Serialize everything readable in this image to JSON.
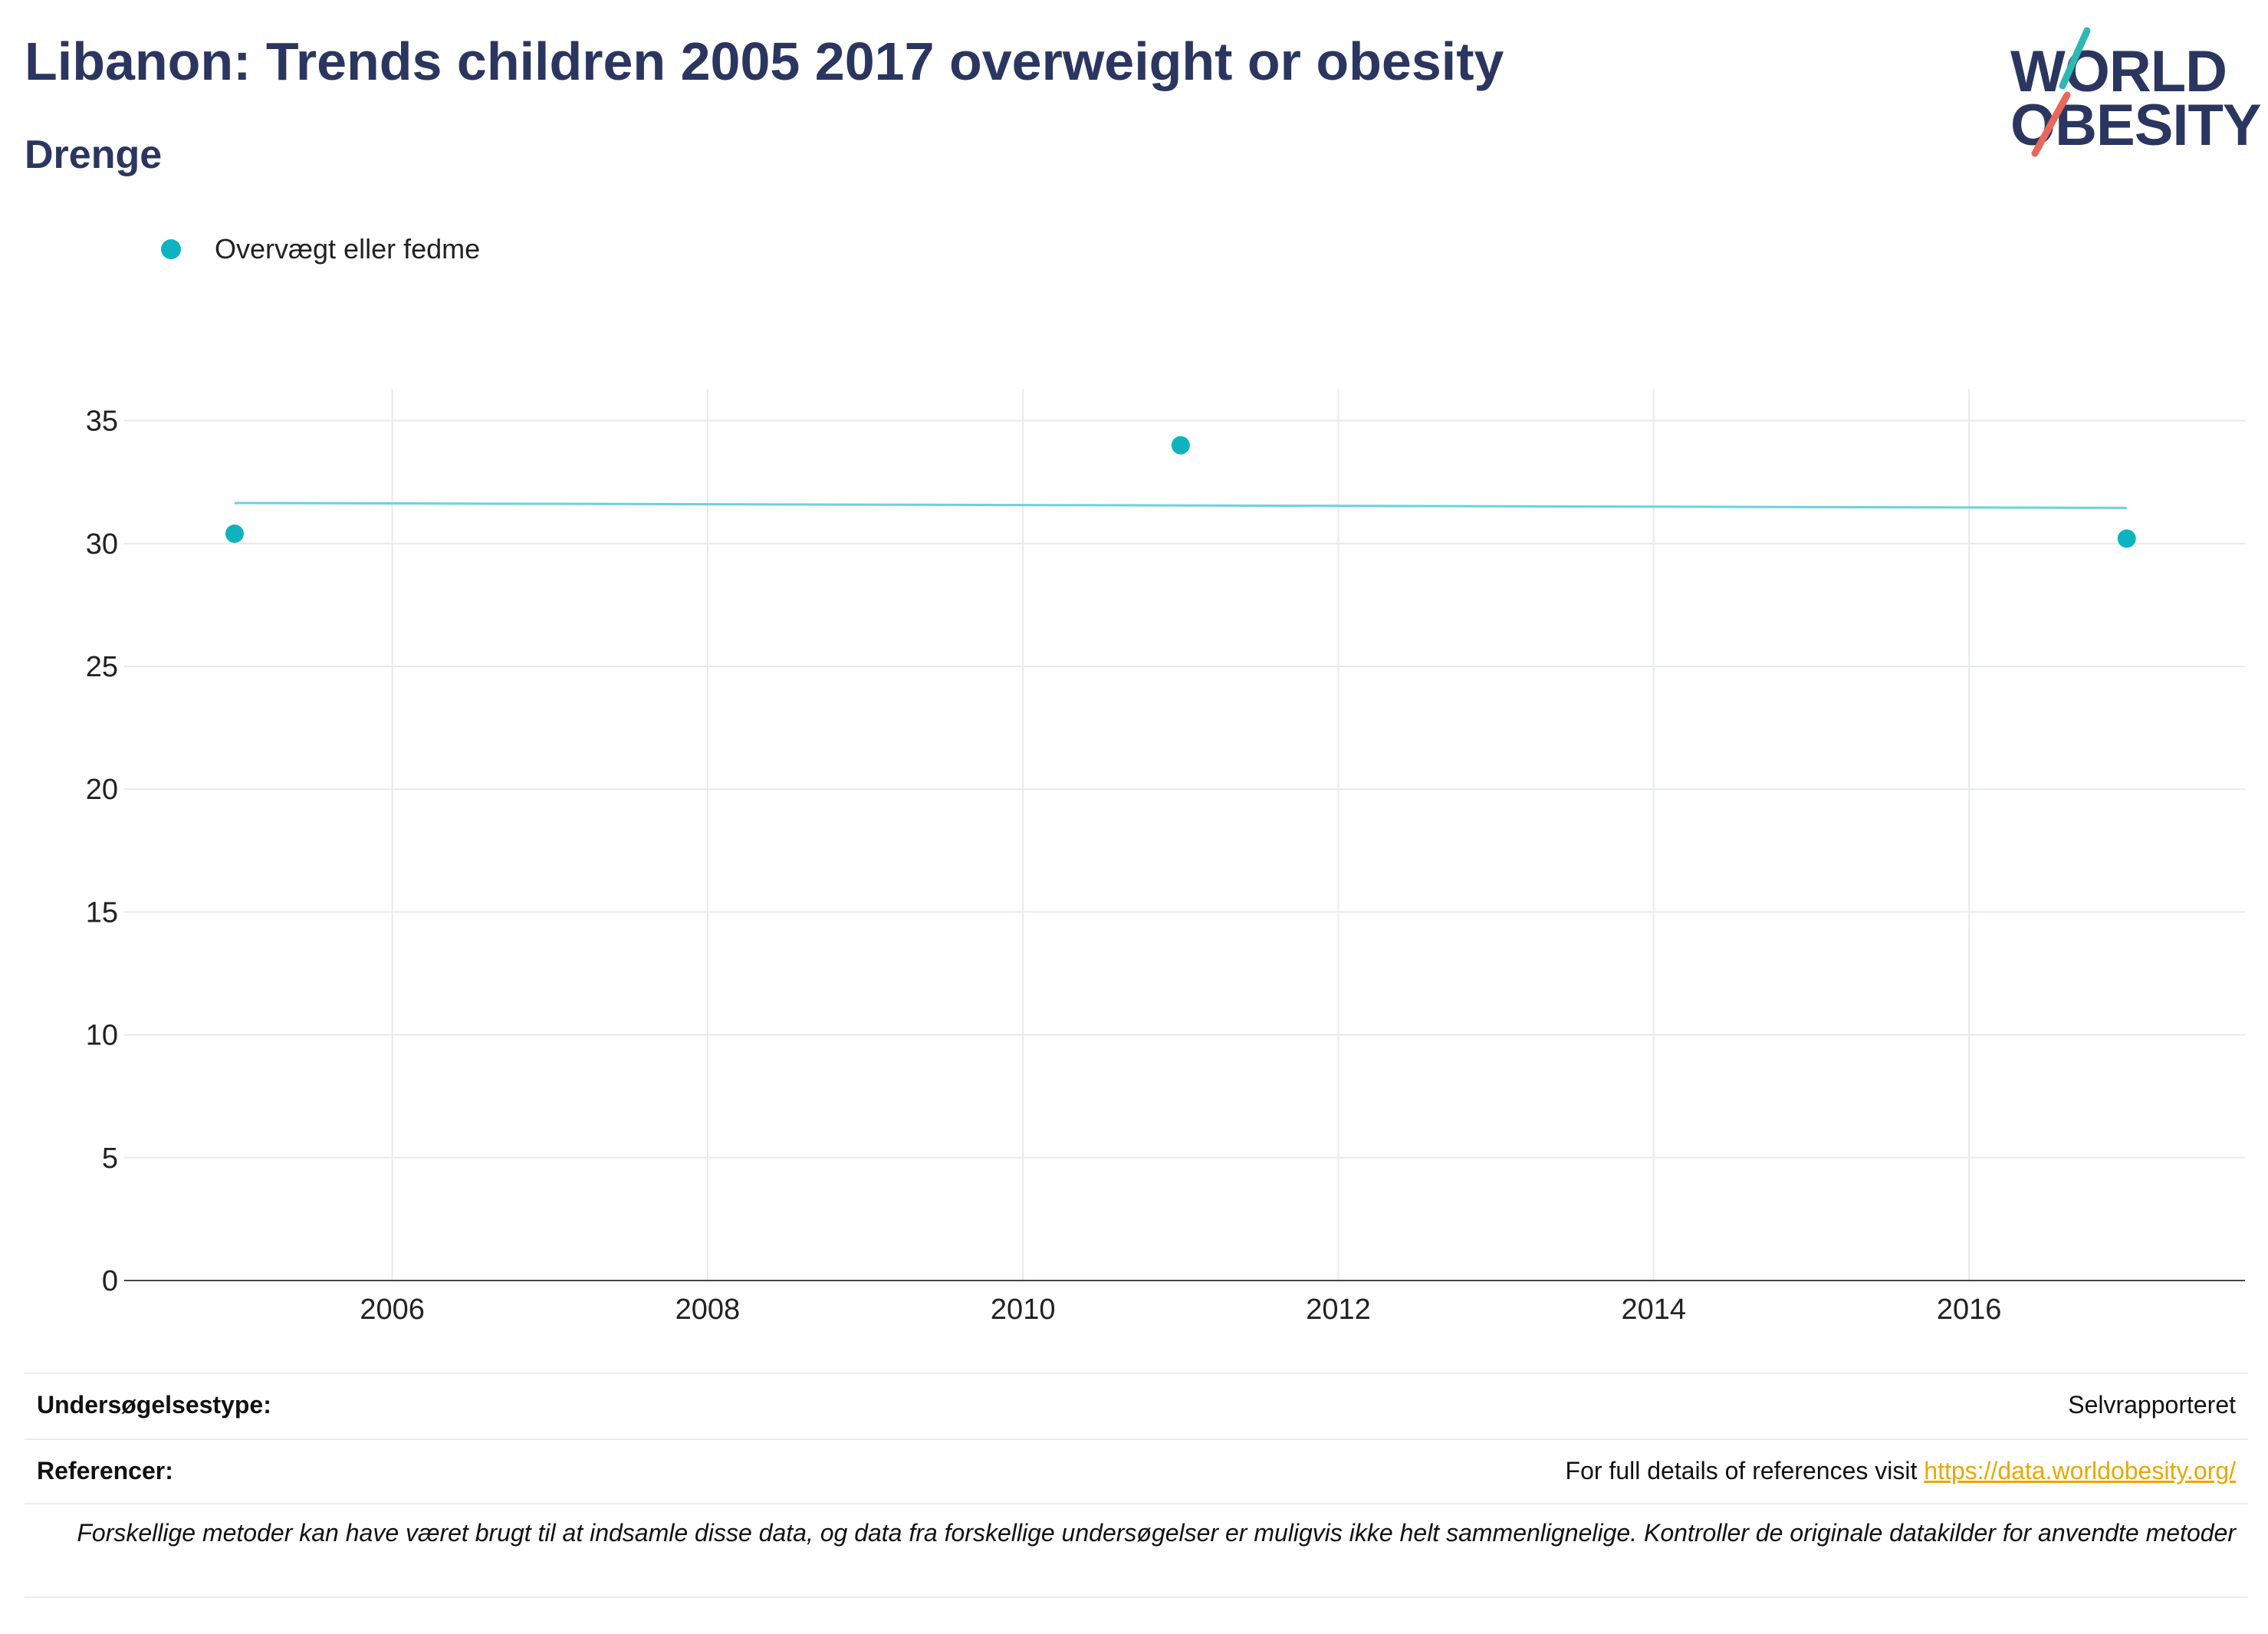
{
  "header": {
    "title": "Libanon: Trends children 2005 2017 overweight or obesity",
    "subtitle": "Drenge"
  },
  "logo": {
    "line1": "WORLD",
    "line2": "OBESITY"
  },
  "colors": {
    "series": "#0fb3bf",
    "trend": "#6ad3da",
    "title": "#2b3660",
    "grid": "#e8eaf0",
    "logo_teal": "#2fb8b3",
    "logo_coral": "#e8685a",
    "link": "#e8a800"
  },
  "chart_data": {
    "type": "scatter",
    "title": "Libanon: Trends children 2005 2017 overweight or obesity",
    "subtitle": "Drenge",
    "legend": {
      "placement": "top-left",
      "entries": [
        "Overvægt eller fedme"
      ]
    },
    "series": [
      {
        "name": "Overvægt eller fedme",
        "x": [
          2005,
          2011,
          2017
        ],
        "y": [
          30.4,
          34.0,
          30.2
        ]
      }
    ],
    "trendline": {
      "x": [
        2005,
        2017
      ],
      "y": [
        31.65,
        31.45
      ]
    },
    "xlim": [
      2004.3,
      2017.75
    ],
    "ylim": [
      0,
      36.3
    ],
    "xticks": [
      2006,
      2008,
      2010,
      2012,
      2014,
      2016
    ],
    "yticks": [
      0,
      5,
      10,
      15,
      20,
      25,
      30,
      35
    ],
    "grid": true,
    "xlabel": "",
    "ylabel": ""
  },
  "footer": {
    "survey_type_label": "Undersøgelsestype:",
    "survey_type_value": "Selvrapporteret",
    "references_label": "Referencer:",
    "references_text": "For full details of references visit ",
    "references_link": "https://data.worldobesity.org/",
    "disclaimer": "Forskellige metoder kan have været brugt til at indsamle disse data, og data fra forskellige undersøgelser er muligvis ikke helt sammenlignelige. Kontroller de originale datakilder for anvendte metoder"
  }
}
